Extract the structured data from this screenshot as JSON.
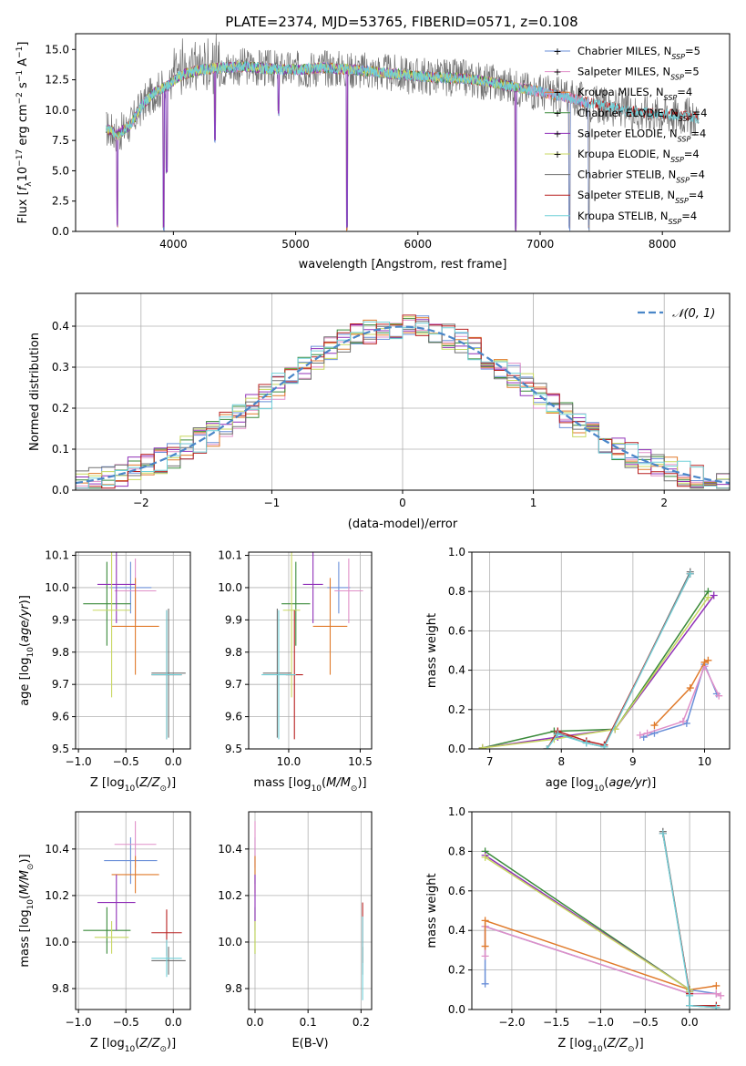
{
  "figure_title": "PLATE=2374, MJD=53765, FIBERID=0571, z=0.108",
  "colors": {
    "Chabrier MILES": "#6a8fd8",
    "Salpeter MILES": "#e08fc8",
    "Kroupa MILES": "#e07a2a",
    "Chabrier ELODIE": "#3a8a3a",
    "Salpeter ELODIE": "#9030b8",
    "Kroupa ELODIE": "#c8d860",
    "Chabrier STELIB": "#707070",
    "Salpeter STELIB": "#b82020",
    "Kroupa STELIB": "#70d0d8"
  },
  "chart_data": [
    {
      "id": "spectrum",
      "type": "line",
      "xlabel": "wavelength [Angstrom, rest frame]",
      "ylabel": "Flux [f_λ 10^-17 erg cm^-2 s^-1 A^-1]",
      "xlim": [
        3200,
        8550
      ],
      "ylim": [
        0,
        16.3
      ],
      "xticks": [
        4000,
        5000,
        6000,
        7000,
        8000
      ],
      "yticks": [
        0.0,
        2.5,
        5.0,
        7.5,
        10.0,
        12.5,
        15.0
      ],
      "ytick_labels": [
        "0.0",
        "2.5",
        "5.0",
        "7.5",
        "10.0",
        "12.5",
        "15.0"
      ],
      "legend": [
        {
          "label": "Chabrier MILES, N",
          "sub": "SSP",
          "tail": "=5"
        },
        {
          "label": "Salpeter MILES, N",
          "sub": "SSP",
          "tail": "=5"
        },
        {
          "label": "Kroupa MILES, N",
          "sub": "SSP",
          "tail": "=4"
        },
        {
          "label": "Chabrier ELODIE, N",
          "sub": "SSP",
          "tail": "=4"
        },
        {
          "label": "Salpeter ELODIE, N",
          "sub": "SSP",
          "tail": "=4"
        },
        {
          "label": "Kroupa ELODIE, N",
          "sub": "SSP",
          "tail": "=4"
        },
        {
          "label": "Chabrier STELIB, N",
          "sub": "SSP",
          "tail": "=4"
        },
        {
          "label": "Salpeter STELIB, N",
          "sub": "SSP",
          "tail": "=4"
        },
        {
          "label": "Kroupa STELIB, N",
          "sub": "SSP",
          "tail": "=4"
        }
      ],
      "continuum": {
        "x": [
          3450,
          3550,
          3650,
          3750,
          3850,
          3950,
          4050,
          4200,
          4400,
          4600,
          4800,
          5000,
          5200,
          5400,
          5600,
          5800,
          6000,
          6200,
          6400,
          6600,
          6800,
          7000,
          7200,
          7400,
          7600,
          7800,
          8000,
          8200,
          8300
        ],
        "y": [
          8.5,
          8.0,
          8.8,
          10.5,
          11.5,
          12.0,
          12.8,
          13.3,
          13.5,
          13.6,
          13.4,
          13.3,
          13.5,
          13.4,
          13.2,
          13.0,
          12.8,
          12.7,
          12.6,
          12.3,
          11.9,
          11.5,
          11.1,
          10.6,
          10.2,
          9.8,
          9.7,
          9.5,
          9.3
        ]
      },
      "absorption_lines": [
        {
          "x": 3540,
          "y": 0.3
        },
        {
          "x": 3920,
          "y": 0.0
        },
        {
          "x": 3945,
          "y": 4.8
        },
        {
          "x": 4340,
          "y": 7.3
        },
        {
          "x": 4860,
          "y": 9.5
        },
        {
          "x": 5420,
          "y": 0.0
        },
        {
          "x": 6800,
          "y": 0.0
        },
        {
          "x": 7240,
          "y": 0.0
        },
        {
          "x": 7400,
          "y": 0.0
        }
      ]
    },
    {
      "id": "residual_histogram",
      "type": "line",
      "xlabel": "(data-model)/error",
      "ylabel": "Normed distribution",
      "xlim": [
        -2.5,
        2.5
      ],
      "ylim": [
        0,
        0.48
      ],
      "xticks": [
        -2,
        -1,
        0,
        1,
        2
      ],
      "xtick_labels": [
        "−2",
        "−1",
        "0",
        "1",
        "2"
      ],
      "yticks": [
        0.0,
        0.1,
        0.2,
        0.3,
        0.4
      ],
      "ytick_labels": [
        "0.0",
        "0.1",
        "0.2",
        "0.3",
        "0.4"
      ],
      "bin_width": 0.1,
      "gaussian_legend": "𝒩(0, 1)"
    },
    {
      "id": "age_vs_Z",
      "type": "scatter",
      "xlabel": "Z [log10(Z/Z⊙)]",
      "ylabel": "age [log10(age/yr)]",
      "xlim": [
        -1.03,
        0.18
      ],
      "ylim": [
        9.5,
        10.11
      ],
      "xticks": [
        -1.0,
        -0.5,
        0.0
      ],
      "xtick_labels": [
        "−1.0",
        "−0.5",
        "0.0"
      ],
      "yticks": [
        9.5,
        9.6,
        9.7,
        9.8,
        9.9,
        10.0,
        10.1
      ],
      "ytick_labels": [
        "9.5",
        "9.6",
        "9.7",
        "9.8",
        "9.9",
        "10.0",
        "10.1"
      ],
      "points": [
        {
          "series": "Chabrier MILES",
          "x": -0.45,
          "y": 10.0,
          "xerr": 0.22,
          "yerr": 0.08
        },
        {
          "series": "Salpeter MILES",
          "x": -0.4,
          "y": 9.99,
          "xerr": 0.22,
          "yerr": 0.1
        },
        {
          "series": "Kroupa MILES",
          "x": -0.4,
          "y": 9.88,
          "xerr": 0.25,
          "yerr": 0.15
        },
        {
          "series": "Chabrier ELODIE",
          "x": -0.7,
          "y": 9.95,
          "xerr": 0.25,
          "yerr": 0.13
        },
        {
          "series": "Salpeter ELODIE",
          "x": -0.6,
          "y": 10.01,
          "xerr": 0.2,
          "yerr": 0.12
        },
        {
          "series": "Kroupa ELODIE",
          "x": -0.65,
          "y": 9.93,
          "xerr": 0.2,
          "yerr": 0.27
        },
        {
          "series": "Chabrier STELIB",
          "x": -0.05,
          "y": 9.735,
          "xerr": 0.18,
          "yerr": 0.2
        },
        {
          "series": "Salpeter STELIB",
          "x": -0.07,
          "y": 9.73,
          "xerr": 0.16,
          "yerr": 0.2
        },
        {
          "series": "Kroupa STELIB",
          "x": -0.07,
          "y": 9.73,
          "xerr": 0.16,
          "yerr": 0.2
        }
      ]
    },
    {
      "id": "age_vs_mass",
      "type": "scatter",
      "xlabel": "mass [log10(M/M⊙)]",
      "ylabel": "",
      "xlim": [
        9.72,
        10.58
      ],
      "ylim": [
        9.5,
        10.11
      ],
      "xticks": [
        10.0,
        10.5
      ],
      "xtick_labels": [
        "10.0",
        "10.5"
      ],
      "yticks": [
        9.5,
        9.6,
        9.7,
        9.8,
        9.9,
        10.0,
        10.1
      ],
      "ytick_labels": [
        "9.5",
        "9.6",
        "9.7",
        "9.8",
        "9.9",
        "10.0",
        "10.1"
      ],
      "points": [
        {
          "series": "Chabrier MILES",
          "x": 10.35,
          "y": 10.0,
          "xerr": 0.08,
          "yerr": 0.08
        },
        {
          "series": "Salpeter MILES",
          "x": 10.42,
          "y": 9.99,
          "xerr": 0.1,
          "yerr": 0.1
        },
        {
          "series": "Kroupa MILES",
          "x": 10.29,
          "y": 9.88,
          "xerr": 0.12,
          "yerr": 0.15
        },
        {
          "series": "Chabrier ELODIE",
          "x": 10.05,
          "y": 9.95,
          "xerr": 0.1,
          "yerr": 0.13
        },
        {
          "series": "Salpeter ELODIE",
          "x": 10.17,
          "y": 10.01,
          "xerr": 0.07,
          "yerr": 0.12
        },
        {
          "series": "Kroupa ELODIE",
          "x": 10.02,
          "y": 9.93,
          "xerr": 0.06,
          "yerr": 0.27
        },
        {
          "series": "Chabrier STELIB",
          "x": 9.92,
          "y": 9.735,
          "xerr": 0.1,
          "yerr": 0.2
        },
        {
          "series": "Salpeter STELIB",
          "x": 10.04,
          "y": 9.73,
          "xerr": 0.06,
          "yerr": 0.2
        },
        {
          "series": "Kroupa STELIB",
          "x": 9.93,
          "y": 9.73,
          "xerr": 0.12,
          "yerr": 0.2
        }
      ]
    },
    {
      "id": "mass_weight_vs_age",
      "type": "line",
      "xlabel": "age [log10(age/yr)]",
      "ylabel": "mass weight",
      "xlim": [
        6.75,
        10.35
      ],
      "ylim": [
        0,
        1.0
      ],
      "xticks": [
        7,
        8,
        9,
        10
      ],
      "xtick_labels": [
        "7",
        "8",
        "9",
        "10"
      ],
      "yticks": [
        0.0,
        0.2,
        0.4,
        0.6,
        0.8,
        1.0
      ],
      "ytick_labels": [
        "0.0",
        "0.2",
        "0.4",
        "0.6",
        "0.8",
        "1.0"
      ],
      "series": [
        {
          "name": "Chabrier MILES",
          "x": [
            9.15,
            9.3,
            9.75,
            10.0,
            10.17
          ],
          "y": [
            0.06,
            0.08,
            0.13,
            0.43,
            0.28
          ]
        },
        {
          "name": "Salpeter MILES",
          "x": [
            9.1,
            9.2,
            9.7,
            10.0,
            10.2
          ],
          "y": [
            0.07,
            0.08,
            0.14,
            0.42,
            0.27
          ]
        },
        {
          "name": "Kroupa MILES",
          "x": [
            9.3,
            9.8,
            10.0,
            10.05
          ],
          "y": [
            0.12,
            0.31,
            0.44,
            0.45
          ]
        },
        {
          "name": "Chabrier ELODIE",
          "x": [
            6.9,
            7.9,
            8.75,
            10.05
          ],
          "y": [
            0.005,
            0.09,
            0.1,
            0.8
          ]
        },
        {
          "name": "Salpeter ELODIE",
          "x": [
            6.9,
            7.95,
            8.75,
            10.13
          ],
          "y": [
            0.005,
            0.06,
            0.1,
            0.78
          ]
        },
        {
          "name": "Kroupa ELODIE",
          "x": [
            6.9,
            7.9,
            8.75,
            10.05
          ],
          "y": [
            0.005,
            0.05,
            0.1,
            0.77
          ]
        },
        {
          "name": "Chabrier STELIB",
          "x": [
            7.8,
            7.95,
            8.35,
            8.6,
            9.8
          ],
          "y": [
            0.0,
            0.08,
            0.03,
            0.01,
            0.9
          ]
        },
        {
          "name": "Salpeter STELIB",
          "x": [
            7.8,
            7.95,
            8.35,
            8.6,
            9.8
          ],
          "y": [
            0.0,
            0.09,
            0.04,
            0.02,
            0.89
          ]
        },
        {
          "name": "Kroupa STELIB",
          "x": [
            7.8,
            7.95,
            8.35,
            8.6,
            9.8
          ],
          "y": [
            0.0,
            0.075,
            0.03,
            0.01,
            0.89
          ]
        }
      ]
    },
    {
      "id": "mass_vs_Z",
      "type": "scatter",
      "xlabel": "Z [log10(Z/Z⊙)]",
      "ylabel": "mass [log10(M/M⊙)]",
      "xlim": [
        -1.03,
        0.18
      ],
      "ylim": [
        9.71,
        10.56
      ],
      "xticks": [
        -1.0,
        -0.5,
        0.0
      ],
      "xtick_labels": [
        "−1.0",
        "−0.5",
        "0.0"
      ],
      "yticks": [
        9.8,
        10.0,
        10.2,
        10.4
      ],
      "ytick_labels": [
        "9.8",
        "10.0",
        "10.2",
        "10.4"
      ],
      "points": [
        {
          "series": "Chabrier MILES",
          "x": -0.45,
          "y": 10.35,
          "xerr": 0.28,
          "yerr": 0.1
        },
        {
          "series": "Salpeter MILES",
          "x": -0.4,
          "y": 10.42,
          "xerr": 0.22,
          "yerr": 0.1
        },
        {
          "series": "Kroupa MILES",
          "x": -0.4,
          "y": 10.29,
          "xerr": 0.25,
          "yerr": 0.08
        },
        {
          "series": "Chabrier ELODIE",
          "x": -0.7,
          "y": 10.05,
          "xerr": 0.25,
          "yerr": 0.1
        },
        {
          "series": "Salpeter ELODIE",
          "x": -0.6,
          "y": 10.17,
          "xerr": 0.2,
          "yerr": 0.12
        },
        {
          "series": "Kroupa ELODIE",
          "x": -0.65,
          "y": 10.02,
          "xerr": 0.18,
          "yerr": 0.07
        },
        {
          "series": "Chabrier STELIB",
          "x": -0.05,
          "y": 9.92,
          "xerr": 0.18,
          "yerr": 0.06
        },
        {
          "series": "Salpeter STELIB",
          "x": -0.07,
          "y": 10.04,
          "xerr": 0.16,
          "yerr": 0.1
        },
        {
          "series": "Kroupa STELIB",
          "x": -0.07,
          "y": 9.93,
          "xerr": 0.16,
          "yerr": 0.08
        }
      ]
    },
    {
      "id": "mass_vs_ebv",
      "type": "scatter",
      "xlabel": "E(B-V)",
      "ylabel": "",
      "xlim": [
        -0.012,
        0.22
      ],
      "ylim": [
        9.71,
        10.56
      ],
      "xticks": [
        0.0,
        0.1,
        0.2
      ],
      "xtick_labels": [
        "0.0",
        "0.1",
        "0.2"
      ],
      "yticks": [
        9.8,
        10.0,
        10.2,
        10.4
      ],
      "ytick_labels": [
        "9.8",
        "10.0",
        "10.2",
        "10.4"
      ],
      "points": [
        {
          "series": "Chabrier MILES",
          "x": 0.0,
          "y": 10.35,
          "yerr": 0.1
        },
        {
          "series": "Salpeter MILES",
          "x": 0.0,
          "y": 10.42,
          "yerr": 0.1
        },
        {
          "series": "Kroupa MILES",
          "x": 0.0,
          "y": 10.29,
          "yerr": 0.08
        },
        {
          "series": "Chabrier ELODIE",
          "x": 0.0,
          "y": 10.05,
          "yerr": 0.1
        },
        {
          "series": "Salpeter ELODIE",
          "x": 0.0,
          "y": 10.17,
          "yerr": 0.12
        },
        {
          "series": "Kroupa ELODIE",
          "x": 0.0,
          "y": 10.02,
          "yerr": 0.07
        },
        {
          "series": "Chabrier STELIB",
          "x": 0.203,
          "y": 9.92,
          "yerr": 0.06
        },
        {
          "series": "Salpeter STELIB",
          "x": 0.203,
          "y": 10.04,
          "yerr": 0.13
        },
        {
          "series": "Kroupa STELIB",
          "x": 0.203,
          "y": 9.93,
          "yerr": 0.18
        }
      ]
    },
    {
      "id": "mass_weight_vs_Z",
      "type": "line",
      "xlabel": "Z [log10(Z/Z⊙)]",
      "ylabel": "mass weight",
      "xlim": [
        -2.45,
        0.45
      ],
      "ylim": [
        0,
        1.0
      ],
      "xticks": [
        -2.0,
        -1.5,
        -1.0,
        -0.5,
        0.0
      ],
      "xtick_labels": [
        "−2.0",
        "−1.5",
        "−1.0",
        "−0.5",
        "0.0"
      ],
      "yticks": [
        0.0,
        0.2,
        0.4,
        0.6,
        0.8,
        1.0
      ],
      "ytick_labels": [
        "0.0",
        "0.2",
        "0.4",
        "0.6",
        "0.8",
        "1.0"
      ],
      "series": [
        {
          "name": "Chabrier MILES",
          "x": [
            -2.3,
            -2.3,
            0.0,
            0.0,
            0.3
          ],
          "y": [
            0.13,
            0.42,
            0.08,
            0.1,
            0.08
          ]
        },
        {
          "name": "Salpeter MILES",
          "x": [
            -2.3,
            -2.3,
            0.0,
            0.3,
            0.35
          ],
          "y": [
            0.27,
            0.42,
            0.08,
            0.08,
            0.07
          ]
        },
        {
          "name": "Kroupa MILES",
          "x": [
            -2.3,
            -2.3,
            0.0,
            0.3
          ],
          "y": [
            0.32,
            0.45,
            0.1,
            0.12
          ]
        },
        {
          "name": "Chabrier ELODIE",
          "x": [
            -2.3,
            0.0,
            0.0
          ],
          "y": [
            0.8,
            0.1,
            0.09
          ]
        },
        {
          "name": "Salpeter ELODIE",
          "x": [
            -2.3,
            0.0,
            0.0
          ],
          "y": [
            0.78,
            0.1,
            0.09
          ]
        },
        {
          "name": "Kroupa ELODIE",
          "x": [
            -2.3,
            0.0,
            0.0
          ],
          "y": [
            0.77,
            0.1,
            0.09
          ]
        },
        {
          "name": "Chabrier STELIB",
          "x": [
            -0.3,
            0.0,
            0.0,
            0.3
          ],
          "y": [
            0.9,
            0.08,
            0.02,
            0.01
          ]
        },
        {
          "name": "Salpeter STELIB",
          "x": [
            -0.3,
            0.0,
            0.0,
            0.3
          ],
          "y": [
            0.89,
            0.08,
            0.02,
            0.02
          ]
        },
        {
          "name": "Kroupa STELIB",
          "x": [
            -0.3,
            0.0,
            0.0,
            0.3
          ],
          "y": [
            0.89,
            0.07,
            0.02,
            0.01
          ]
        }
      ]
    }
  ]
}
